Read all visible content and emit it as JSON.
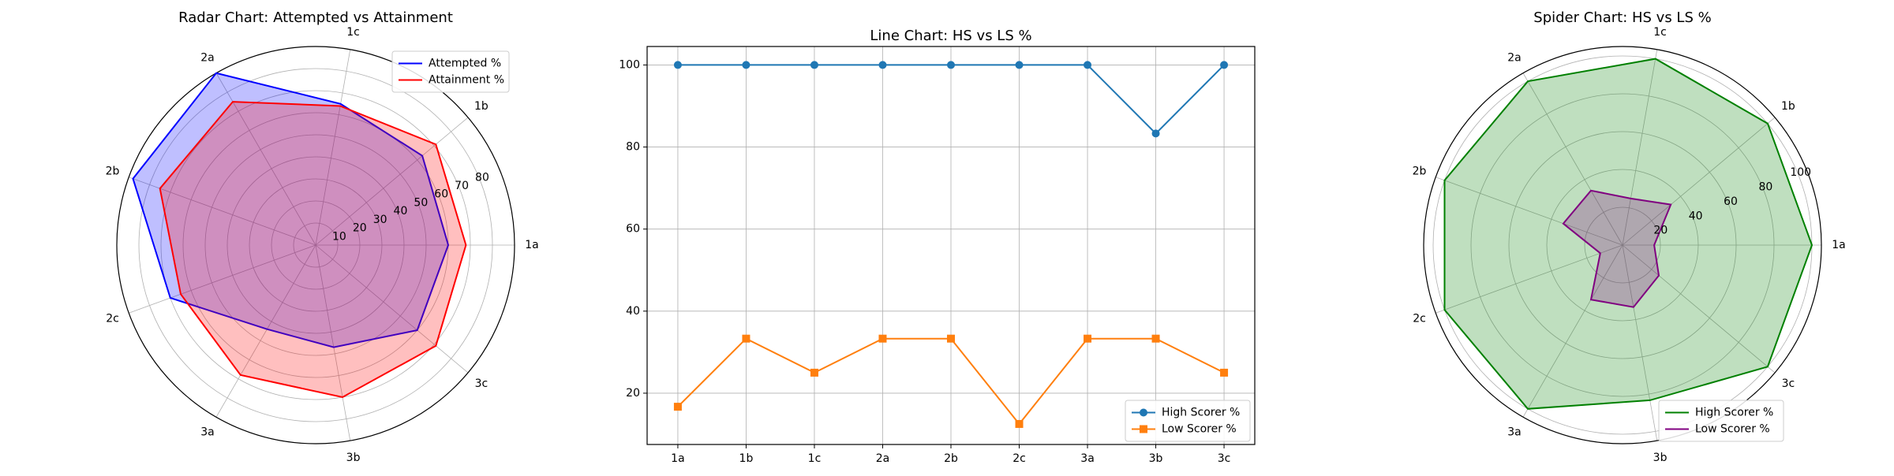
{
  "chart_data": [
    {
      "type": "radar",
      "title": "Radar Chart: Attempted vs Attainment",
      "categories": [
        "1a",
        "1b",
        "1c",
        "2a",
        "2b",
        "2c",
        "3a",
        "3b",
        "3c"
      ],
      "rlim": [
        0,
        90
      ],
      "radial_ticks": [
        10,
        20,
        30,
        40,
        50,
        60,
        70,
        80
      ],
      "grid": true,
      "legend_position": "upper-right",
      "series": [
        {
          "name": "Attempted %",
          "color": "#0000ff",
          "fill": "#0000ff",
          "values": [
            60,
            63,
            65,
            90,
            88,
            70,
            44,
            47,
            60
          ]
        },
        {
          "name": "Attainment %",
          "color": "#ff0000",
          "fill": "#ff0000",
          "values": [
            68,
            71,
            64,
            75,
            75,
            65,
            68,
            70,
            71
          ]
        }
      ]
    },
    {
      "type": "line",
      "title": "Line Chart: HS vs LS %",
      "categories": [
        "1a",
        "1b",
        "1c",
        "2a",
        "2b",
        "2c",
        "3a",
        "3b",
        "3c"
      ],
      "ylim": [
        7.5,
        104.5
      ],
      "y_ticks": [
        20,
        40,
        60,
        80,
        100
      ],
      "grid": true,
      "legend_position": "lower-right",
      "series": [
        {
          "name": "High Scorer %",
          "color": "#1f77b4",
          "marker": "circle",
          "values": [
            100,
            100,
            100,
            100,
            100,
            100,
            100,
            83.3,
            100
          ]
        },
        {
          "name": "Low Scorer %",
          "color": "#ff7f0e",
          "marker": "square",
          "values": [
            16.7,
            33.3,
            25,
            33.3,
            33.3,
            12.5,
            33.3,
            33.3,
            25
          ]
        }
      ]
    },
    {
      "type": "radar",
      "title": "Spider Chart: HS vs LS %",
      "categories": [
        "1a",
        "1b",
        "1c",
        "2a",
        "2b",
        "2c",
        "3a",
        "3b",
        "3c"
      ],
      "rlim": [
        0,
        105
      ],
      "radial_ticks": [
        20,
        40,
        60,
        80,
        100
      ],
      "grid": true,
      "legend_position": "lower-right",
      "series": [
        {
          "name": "High Scorer %",
          "color": "#008000",
          "fill": "#008000",
          "values": [
            100,
            100,
            100,
            100,
            100,
            100,
            100,
            83.3,
            100
          ]
        },
        {
          "name": "Low Scorer %",
          "color": "#800080",
          "fill": "#800080",
          "values": [
            16.7,
            33.3,
            25,
            33.3,
            33.3,
            12.5,
            33.3,
            33.3,
            25
          ]
        }
      ]
    }
  ]
}
